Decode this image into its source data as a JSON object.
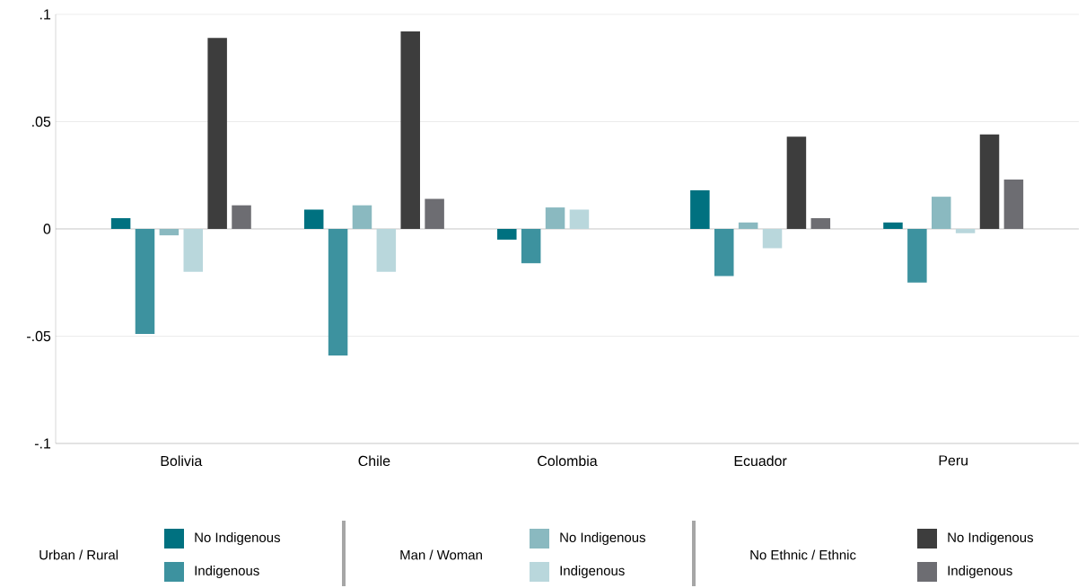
{
  "chart_data": {
    "type": "bar",
    "categories": [
      "Bolivia",
      "Chile",
      "Colombia",
      "Ecuador",
      "Peru"
    ],
    "series": [
      {
        "name": "No Indigenous",
        "color": "#007180",
        "values": [
          0.005,
          0.009,
          -0.005,
          0.018,
          0.003
        ]
      },
      {
        "name": "Indigenous",
        "color": "#3d929f",
        "values": [
          -0.049,
          -0.059,
          -0.016,
          -0.022,
          -0.025
        ]
      },
      {
        "name": "No Indigenous",
        "color": "#8ab9c0",
        "values": [
          -0.003,
          0.011,
          0.01,
          0.003,
          0.015
        ]
      },
      {
        "name": "Indigenous",
        "color": "#b9d7dc",
        "values": [
          -0.02,
          -0.02,
          0.009,
          -0.009,
          -0.002
        ]
      },
      {
        "name": "No Indigenous",
        "color": "#3d3d3d",
        "values": [
          0.089,
          0.092,
          null,
          0.043,
          0.044
        ]
      },
      {
        "name": "Indigenous",
        "color": "#6d6d72",
        "values": [
          0.011,
          0.014,
          null,
          0.005,
          0.023
        ]
      }
    ],
    "annotations": [
      "Urban / Rural",
      "Man / Woman",
      "No Ethnic / Ethnic"
    ],
    "ylim": [
      -0.1,
      0.1
    ],
    "yticks": [
      {
        "value": -0.1,
        "label": "-.1"
      },
      {
        "value": -0.05,
        "label": "-.05"
      },
      {
        "value": 0,
        "label": "0"
      },
      {
        "value": 0.05,
        "label": ".05"
      },
      {
        "value": 0.1,
        "label": ".1"
      }
    ],
    "grid": "y",
    "legend": "bottom"
  }
}
